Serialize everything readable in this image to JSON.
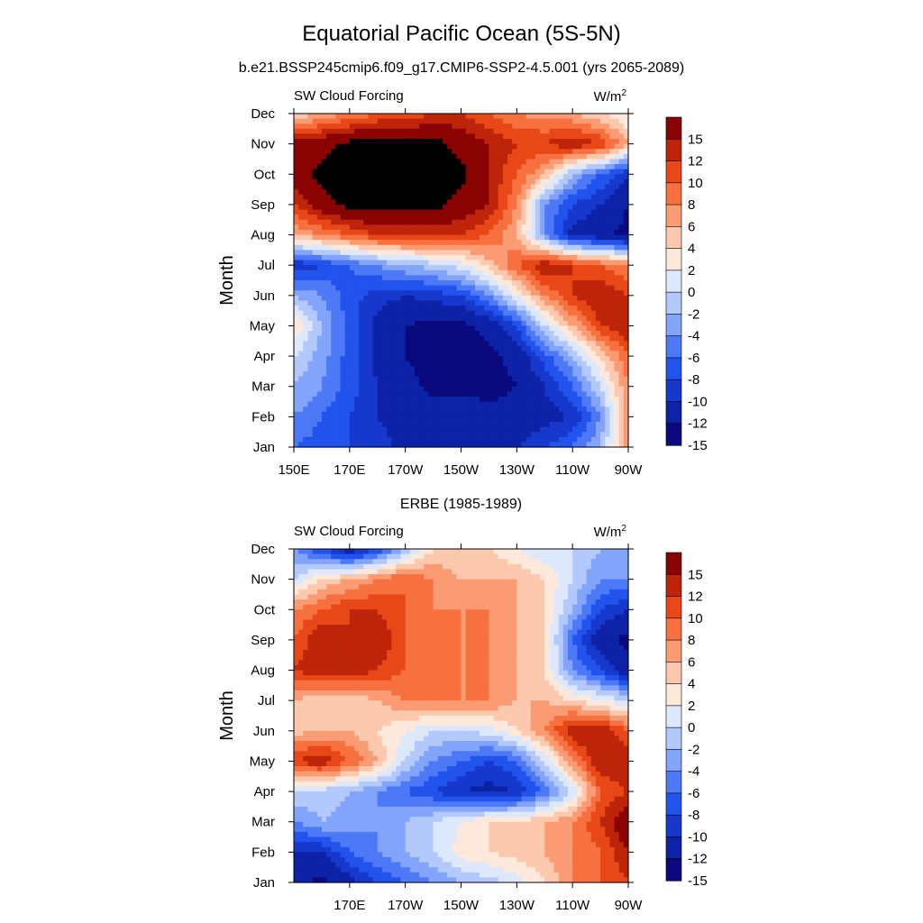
{
  "figure": {
    "title": "Equatorial Pacific Ocean (5S-5N)",
    "subtitle": "b.e21.BSSP245cmip6.f09_g17.CMIP6-SSP2-4.5.001 (yrs 2065-2089)"
  },
  "colorbar": {
    "levels": [
      -15,
      -12,
      -10,
      -8,
      -6,
      -4,
      -2,
      0,
      2,
      4,
      6,
      8,
      10,
      12,
      15
    ],
    "labels": [
      "15",
      "12",
      "10",
      "8",
      "6",
      "4",
      "2",
      "0",
      "-2",
      "-4",
      "-6",
      "-8",
      "-10",
      "-12",
      "-15"
    ],
    "colors": [
      "#0a0a7e",
      "#0d22a6",
      "#1638cc",
      "#2253ec",
      "#4d79f7",
      "#82a4fa",
      "#b3c9fb",
      "#dde8fd",
      "#fde9dc",
      "#fcc8ae",
      "#fb9b73",
      "#f7703f",
      "#e84818",
      "#bd2409",
      "#8a0303"
    ]
  },
  "chart_data": [
    {
      "type": "heatmap",
      "panel_title": "",
      "left_label": "SW Cloud Forcing",
      "right_label_base": "W/m",
      "right_label_sup": "2",
      "ylabel": "Month",
      "x_ticks": [
        "150E",
        "170E",
        "170W",
        "150W",
        "130W",
        "110W",
        "90W"
      ],
      "x_tick_values": [
        150,
        170,
        190,
        210,
        230,
        250,
        270
      ],
      "y_ticks": [
        "Jan",
        "Feb",
        "Mar",
        "Apr",
        "May",
        "Jun",
        "Jul",
        "Aug",
        "Sep",
        "Oct",
        "Nov",
        "Dec"
      ],
      "xlim": [
        150,
        270
      ],
      "ylim": [
        1,
        12
      ],
      "x": [
        150,
        160,
        170,
        180,
        190,
        200,
        210,
        220,
        230,
        240,
        250,
        260,
        270
      ],
      "y": [
        1,
        2,
        3,
        4,
        5,
        6,
        7,
        8,
        9,
        10,
        11,
        12
      ],
      "z": [
        [
          -8,
          -9,
          -10,
          -11,
          -13,
          -14,
          -14,
          -13,
          -12,
          -10,
          -8,
          -4,
          6
        ],
        [
          -6,
          -8,
          -10,
          -12,
          -13,
          -13,
          -13,
          -14,
          -14,
          -13,
          -12,
          -6,
          6
        ],
        [
          -4,
          -6,
          -9,
          -12,
          -14,
          -16,
          -16,
          -16,
          -15,
          -12,
          -8,
          -2,
          6
        ],
        [
          -2,
          -5,
          -9,
          -13,
          -15,
          -16,
          -16,
          -16,
          -14,
          -9,
          -4,
          2,
          8
        ],
        [
          2,
          -4,
          -9,
          -13,
          -15,
          -16,
          -16,
          -14,
          -10,
          -2,
          4,
          10,
          12
        ],
        [
          -4,
          -6,
          -9,
          -11,
          -12,
          -11,
          -10,
          -6,
          0,
          6,
          10,
          12,
          10
        ],
        [
          -12,
          -10,
          -8,
          -6,
          -4,
          -3,
          -1,
          3,
          8,
          12,
          10,
          8,
          6
        ],
        [
          4,
          6,
          8,
          10,
          10,
          10,
          10,
          8,
          4,
          -6,
          -13,
          -14,
          -16
        ],
        [
          10,
          14,
          16,
          16,
          16,
          16,
          14,
          12,
          6,
          -6,
          -10,
          -12,
          -15
        ],
        [
          13,
          16,
          16,
          16,
          16,
          16,
          16,
          12,
          8,
          4,
          -4,
          -8,
          -12
        ],
        [
          13,
          14,
          16,
          16,
          16,
          16,
          14,
          12,
          10,
          10,
          12,
          10,
          4
        ],
        [
          2,
          4,
          6,
          8,
          8,
          10,
          10,
          8,
          6,
          5,
          4,
          2,
          0
        ]
      ]
    },
    {
      "type": "heatmap",
      "panel_title": "ERBE (1985-1989)",
      "left_label": "SW Cloud Forcing",
      "right_label_base": "W/m",
      "right_label_sup": "2",
      "ylabel": "Month",
      "x_ticks": [
        "170E",
        "170W",
        "150W",
        "130W",
        "110W",
        "90W"
      ],
      "x_tick_values": [
        170,
        190,
        210,
        230,
        250,
        270
      ],
      "y_ticks": [
        "Jan",
        "Feb",
        "Mar",
        "Apr",
        "May",
        "Jun",
        "Jul",
        "Aug",
        "Sep",
        "Oct",
        "Nov",
        "Dec"
      ],
      "xlim": [
        150,
        270
      ],
      "ylim": [
        1,
        12
      ],
      "x": [
        150,
        160,
        170,
        180,
        190,
        200,
        210,
        220,
        230,
        240,
        250,
        260,
        270
      ],
      "y": [
        1,
        2,
        3,
        4,
        5,
        6,
        7,
        8,
        9,
        10,
        11,
        12
      ],
      "z": [
        [
          -14,
          -16,
          -13,
          -10,
          -8,
          -6,
          -4,
          -3,
          -1,
          2,
          6,
          8,
          10
        ],
        [
          -12,
          -12,
          -8,
          -6,
          -4,
          -2,
          1,
          2,
          3,
          4,
          6,
          8,
          12
        ],
        [
          -6,
          -4,
          -5,
          -6,
          -4,
          -2,
          0,
          2,
          2,
          4,
          6,
          10,
          15
        ],
        [
          -2,
          -3,
          -4,
          -6,
          -8,
          -10,
          -12,
          -13,
          -12,
          -8,
          -2,
          8,
          10
        ],
        [
          10,
          12,
          8,
          4,
          -2,
          -6,
          -8,
          -10,
          -8,
          -2,
          6,
          12,
          12
        ],
        [
          3,
          4,
          4,
          2,
          0,
          -2,
          -2,
          -1,
          2,
          6,
          12,
          12,
          8
        ],
        [
          4,
          2,
          2,
          4,
          6,
          6,
          6,
          6,
          4,
          4,
          2,
          0,
          -2
        ],
        [
          10,
          12,
          12,
          10,
          8,
          6,
          6,
          6,
          4,
          2,
          -6,
          -10,
          -14
        ],
        [
          8,
          12,
          10,
          12,
          8,
          6,
          6,
          6,
          4,
          2,
          -8,
          -14,
          -16
        ],
        [
          6,
          8,
          10,
          10,
          8,
          6,
          6,
          6,
          4,
          2,
          -4,
          -10,
          -12
        ],
        [
          -2,
          2,
          4,
          6,
          8,
          6,
          4,
          4,
          4,
          2,
          -2,
          -6,
          -6
        ],
        [
          -6,
          -10,
          -14,
          -10,
          -4,
          2,
          2,
          2,
          0,
          -2,
          -2,
          -4,
          -4
        ]
      ]
    }
  ]
}
